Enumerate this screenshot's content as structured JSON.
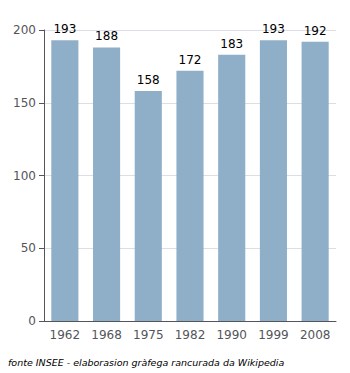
{
  "chart_data": {
    "type": "bar",
    "categories": [
      "1962",
      "1968",
      "1975",
      "1982",
      "1990",
      "1999",
      "2008"
    ],
    "values": [
      193,
      188,
      158,
      172,
      183,
      193,
      192
    ],
    "color": "#8FAFC8",
    "ylim": [
      0,
      200
    ],
    "yticks": [
      0,
      50,
      100,
      150,
      200
    ],
    "grid": true,
    "data_labels": true,
    "annotations": [
      "fonte INSEE - elaborasion gràfega rancurada da Wikipedia"
    ]
  }
}
